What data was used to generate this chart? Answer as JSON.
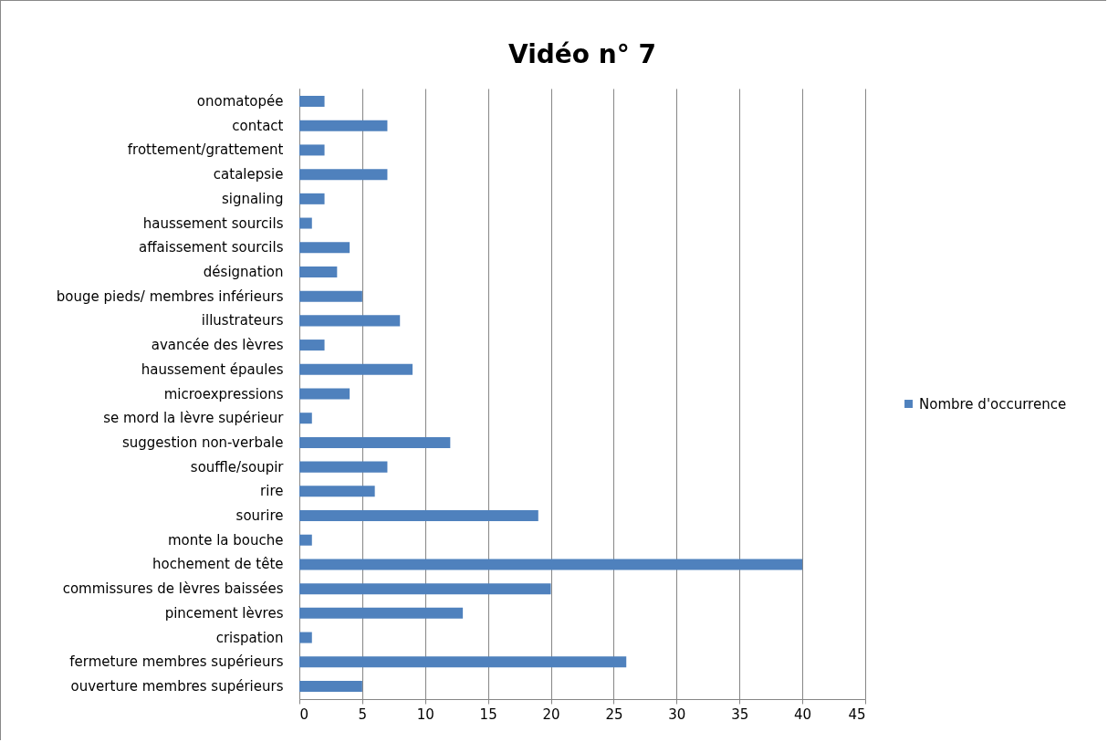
{
  "chart_data": {
    "type": "bar",
    "orientation": "horizontal",
    "title": "Vidéo n° 7",
    "categories": [
      "onomatopée",
      "contact",
      "frottement/grattement",
      "catalepsie",
      "signaling",
      "haussement sourcils",
      "affaissement sourcils",
      "désignation",
      "bouge pieds/ membres inférieurs",
      "illustrateurs",
      "avancée des lèvres",
      "haussement épaules",
      "microexpressions",
      "se mord la lèvre supérieur",
      "suggestion non-verbale",
      "souffle/soupir",
      "rire",
      "sourire",
      "monte la bouche",
      "hochement de tête",
      "commissures de lèvres baissées",
      "pincement lèvres",
      "crispation",
      "fermeture membres supérieurs",
      "ouverture membres supérieurs"
    ],
    "series": [
      {
        "name": "Nombre d'occurrence",
        "color": "#4f81bd",
        "values": [
          2,
          7,
          2,
          7,
          2,
          1,
          4,
          3,
          5,
          8,
          2,
          9,
          4,
          1,
          12,
          7,
          6,
          19,
          1,
          40,
          20,
          13,
          1,
          26,
          5
        ]
      }
    ],
    "xlim": [
      0,
      45
    ],
    "xticks": [
      0,
      5,
      10,
      15,
      20,
      25,
      30,
      35,
      40,
      45
    ],
    "grid": "x",
    "legend": "right"
  }
}
